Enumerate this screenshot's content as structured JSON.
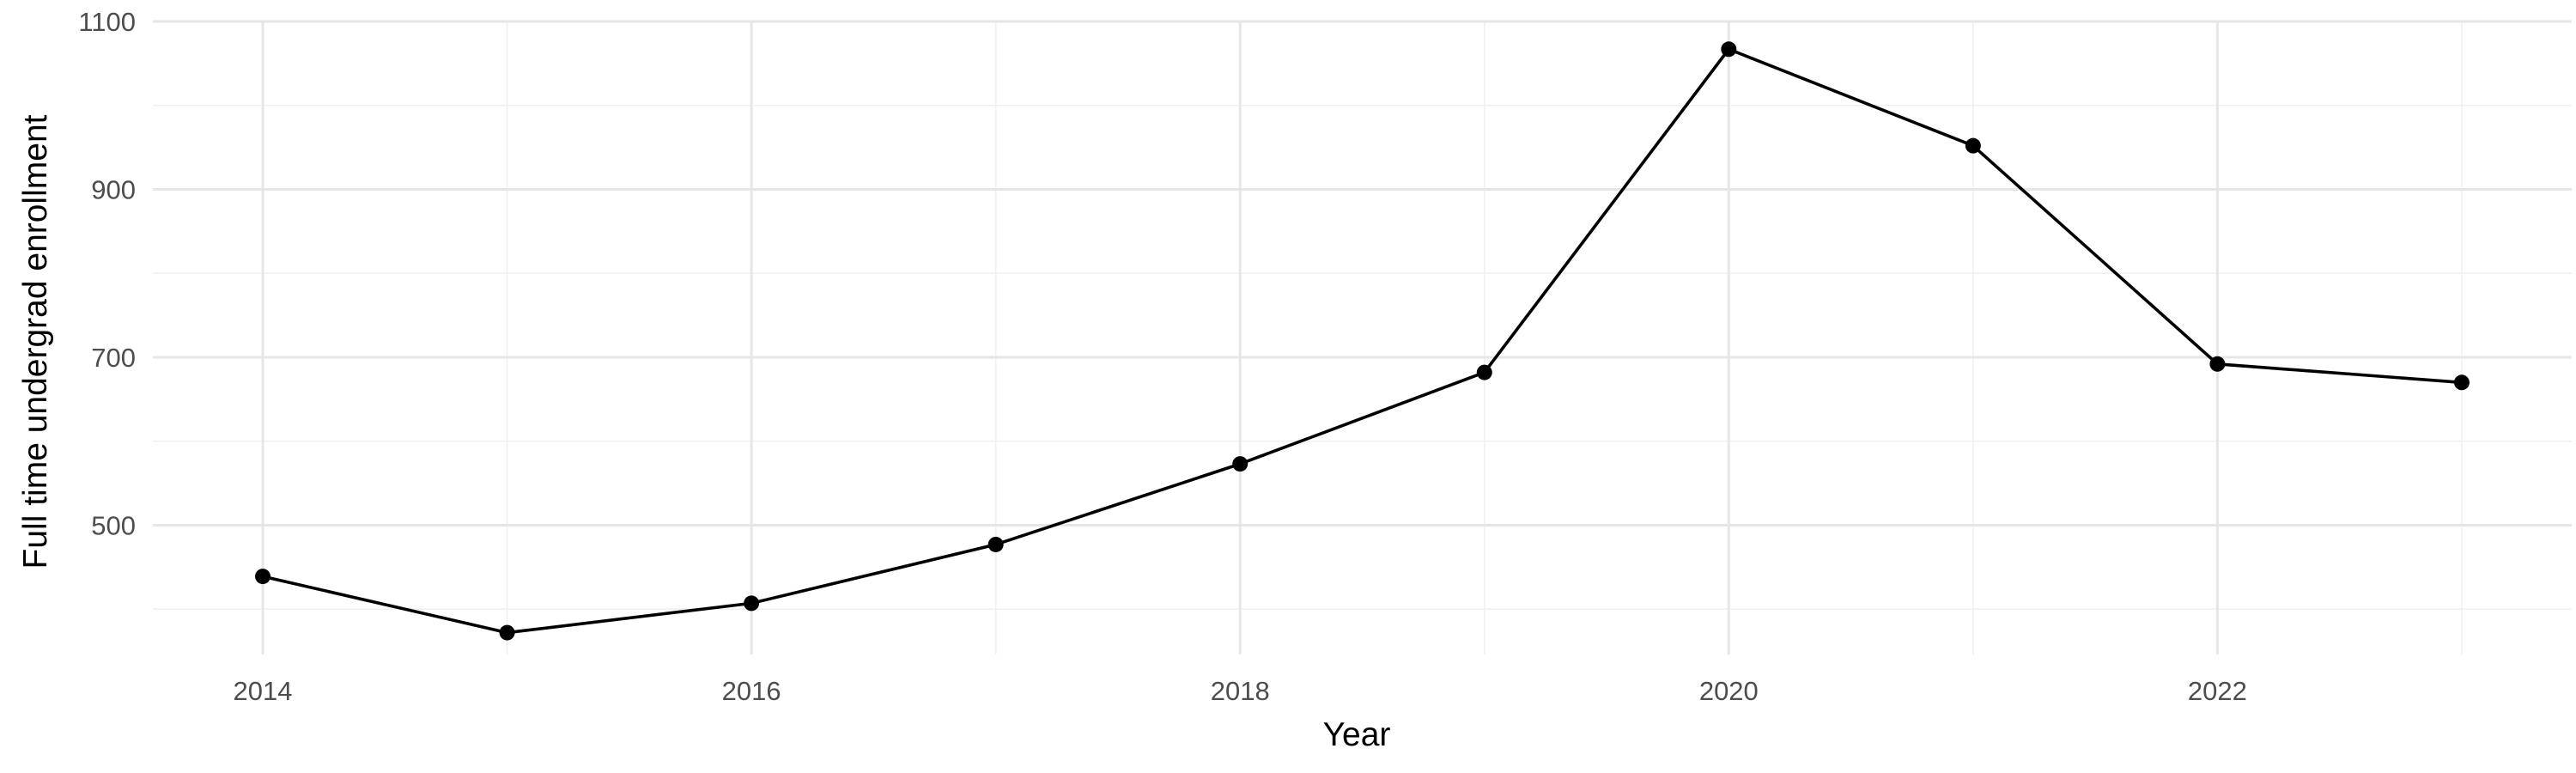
{
  "chart_data": {
    "type": "line",
    "title": "",
    "xlabel": "Year",
    "ylabel": "Full time undergrad enrollment",
    "xlim": [
      2013.55,
      2023.45
    ],
    "ylim": [
      346,
      1100
    ],
    "x_ticks": [
      2014,
      2016,
      2018,
      2020,
      2022
    ],
    "x_tick_labels": [
      "2014",
      "2016",
      "2018",
      "2020",
      "2022"
    ],
    "x_minor_ticks": [
      2015,
      2017,
      2019,
      2021,
      2023
    ],
    "y_ticks": [
      500,
      700,
      900,
      1100
    ],
    "y_tick_labels": [
      "500",
      "700",
      "900",
      "1100"
    ],
    "y_minor_ticks": [
      400,
      600,
      800,
      1000
    ],
    "grid": true,
    "legend": "none",
    "series": [
      {
        "x": [
          2014,
          2015,
          2016,
          2017,
          2018,
          2019,
          2020,
          2021,
          2022,
          2023
        ],
        "values": [
          439,
          372,
          407,
          477,
          573,
          682,
          1067,
          952,
          692,
          670
        ]
      }
    ],
    "colors": {
      "line": "#000000",
      "point": "#000000",
      "grid_major": "#e6e6e6",
      "grid_minor": "#f0f0f0",
      "tick_text": "#4d4d4d",
      "axis_title": "#000000"
    }
  }
}
